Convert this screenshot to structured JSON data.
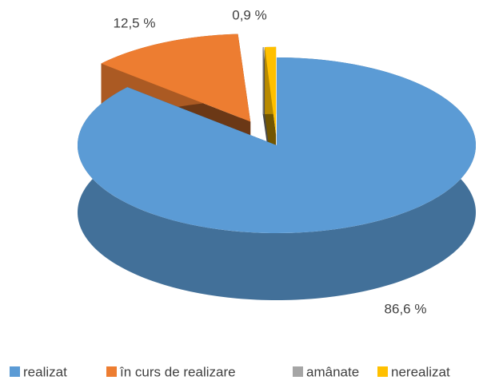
{
  "chart_data": {
    "type": "pie",
    "categories": [
      "realizat",
      "în curs de realizare",
      "amânate",
      "nerealizat"
    ],
    "values": [
      86.6,
      12.5,
      0.1,
      0.9
    ],
    "value_labels": [
      "86,6 %",
      "12,5 %",
      null,
      "0,9 %"
    ],
    "colors": [
      "#5b9bd5",
      "#ed7d31",
      "#a5a5a5",
      "#ffc000"
    ],
    "legend": "bottom"
  }
}
